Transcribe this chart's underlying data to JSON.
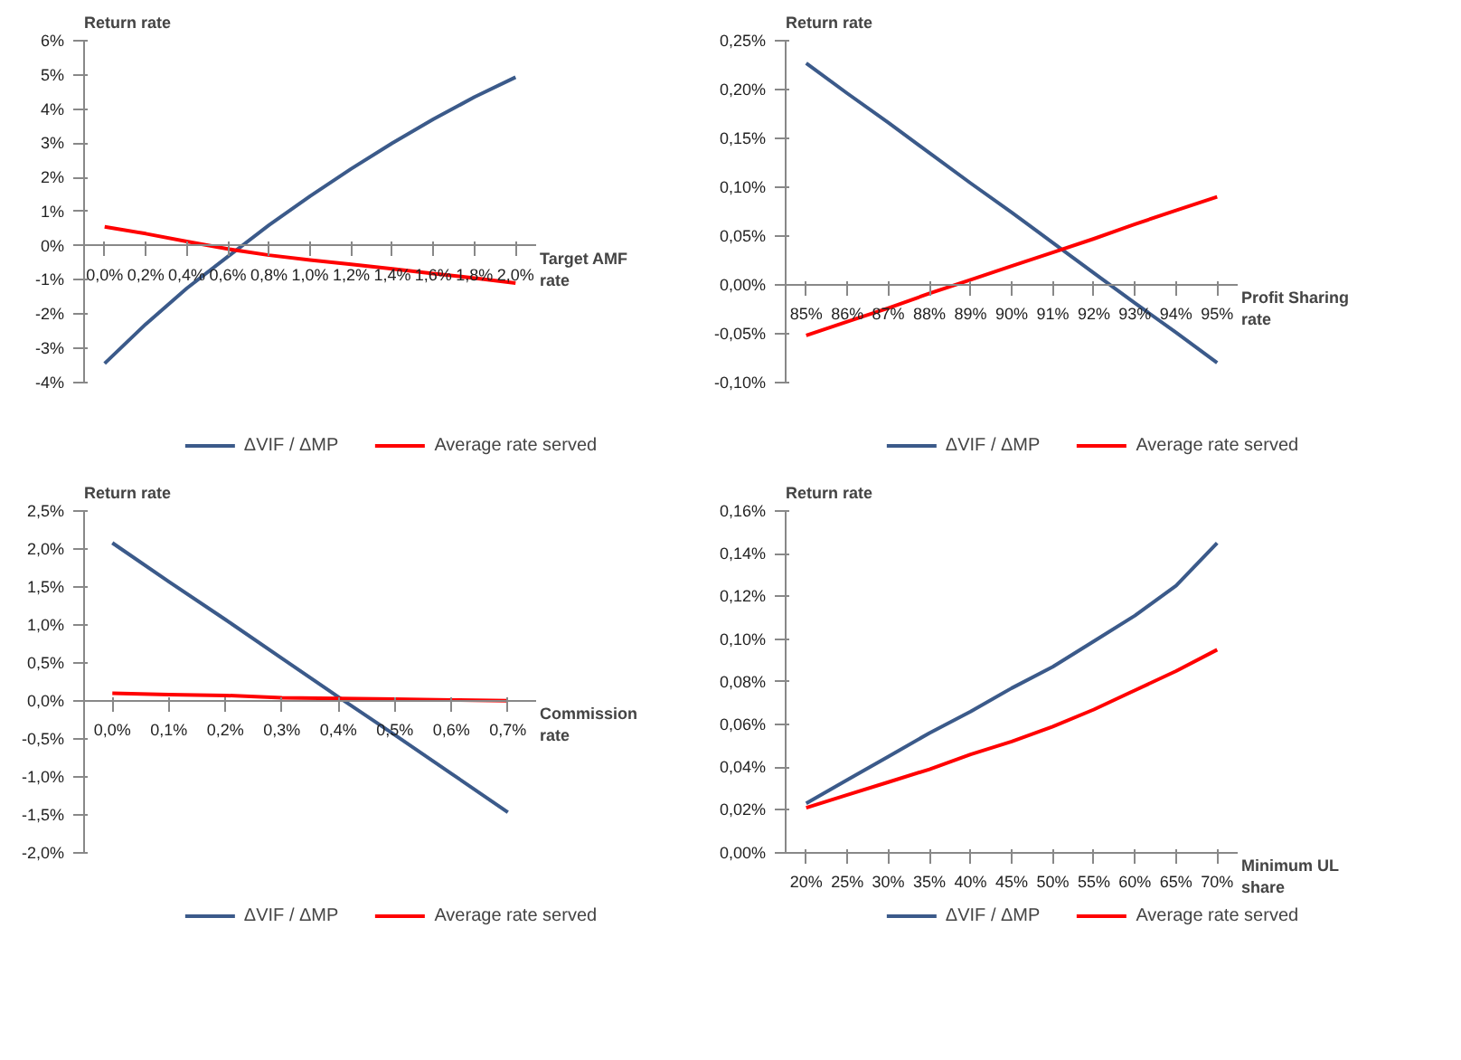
{
  "chart_data": [
    {
      "type": "line",
      "ylabel": "Return rate",
      "xlabel": "Target AMF\nrate",
      "categories": [
        "0,0%",
        "0,2%",
        "0,4%",
        "0,6%",
        "0,8%",
        "1,0%",
        "1,2%",
        "1,4%",
        "1,6%",
        "1,8%",
        "2,0%"
      ],
      "series": [
        {
          "name": "ΔVIF / ΔMP",
          "color": "#3b5a8a",
          "values": [
            -3.45,
            -2.3,
            -1.25,
            -0.32,
            0.6,
            1.45,
            2.25,
            3.0,
            3.7,
            4.35,
            4.93
          ]
        },
        {
          "name": "Average rate served",
          "color": "#ff0000",
          "values": [
            0.55,
            0.35,
            0.12,
            -0.1,
            -0.28,
            -0.42,
            -0.55,
            -0.68,
            -0.82,
            -0.95,
            -1.1
          ]
        }
      ],
      "ylim": [
        -4,
        6
      ],
      "yticks": [
        {
          "value": -4,
          "label": "-4%"
        },
        {
          "value": -3,
          "label": "-3%"
        },
        {
          "value": -2,
          "label": "-2%"
        },
        {
          "value": -1,
          "label": "-1%"
        },
        {
          "value": 0,
          "label": "0%"
        },
        {
          "value": 1,
          "label": "1%"
        },
        {
          "value": 2,
          "label": "2%"
        },
        {
          "value": 3,
          "label": "3%"
        },
        {
          "value": 4,
          "label": "4%"
        },
        {
          "value": 5,
          "label": "5%"
        },
        {
          "value": 6,
          "label": "6%"
        }
      ],
      "grid": false,
      "legend": "bottom",
      "marker": "none",
      "line_style": "solid"
    },
    {
      "type": "line",
      "ylabel": "Return rate",
      "xlabel": "Profit Sharing\nrate",
      "categories": [
        "85%",
        "86%",
        "87%",
        "88%",
        "89%",
        "90%",
        "91%",
        "92%",
        "93%",
        "94%",
        "95%"
      ],
      "series": [
        {
          "name": "ΔVIF / ΔMP",
          "color": "#3b5a8a",
          "values": [
            0.227,
            0.196,
            0.166,
            0.135,
            0.104,
            0.074,
            0.043,
            0.012,
            -0.019,
            -0.049,
            -0.08
          ]
        },
        {
          "name": "Average rate served",
          "color": "#ff0000",
          "values": [
            -0.052,
            -0.038,
            -0.024,
            -0.009,
            0.005,
            0.019,
            0.033,
            0.047,
            0.062,
            0.076,
            0.09
          ]
        }
      ],
      "ylim": [
        -0.1,
        0.25
      ],
      "yticks": [
        {
          "value": -0.1,
          "label": "-0,10%"
        },
        {
          "value": -0.05,
          "label": "-0,05%"
        },
        {
          "value": 0,
          "label": "0,00%"
        },
        {
          "value": 0.05,
          "label": "0,05%"
        },
        {
          "value": 0.1,
          "label": "0,10%"
        },
        {
          "value": 0.15,
          "label": "0,15%"
        },
        {
          "value": 0.2,
          "label": "0,20%"
        },
        {
          "value": 0.25,
          "label": "0,25%"
        }
      ],
      "grid": false,
      "legend": "bottom",
      "marker": "none",
      "line_style": "solid"
    },
    {
      "type": "line",
      "ylabel": "Return rate",
      "xlabel": "Commission\nrate",
      "categories": [
        "0,0%",
        "0,1%",
        "0,2%",
        "0,3%",
        "0,4%",
        "0,5%",
        "0,6%",
        "0,7%"
      ],
      "series": [
        {
          "name": "ΔVIF / ΔMP",
          "color": "#3b5a8a",
          "values": [
            2.08,
            1.57,
            1.07,
            0.56,
            0.05,
            -0.45,
            -0.96,
            -1.47
          ]
        },
        {
          "name": "Average rate served",
          "color": "#ff0000",
          "values": [
            0.1,
            0.08,
            0.07,
            0.04,
            0.03,
            0.02,
            0.01,
            0.0
          ]
        }
      ],
      "ylim": [
        -2,
        2.5
      ],
      "yticks": [
        {
          "value": -2,
          "label": "-2,0%"
        },
        {
          "value": -1.5,
          "label": "-1,5%"
        },
        {
          "value": -1,
          "label": "-1,0%"
        },
        {
          "value": -0.5,
          "label": "-0,5%"
        },
        {
          "value": 0,
          "label": "0,0%"
        },
        {
          "value": 0.5,
          "label": "0,5%"
        },
        {
          "value": 1,
          "label": "1,0%"
        },
        {
          "value": 1.5,
          "label": "1,5%"
        },
        {
          "value": 2,
          "label": "2,0%"
        },
        {
          "value": 2.5,
          "label": "2,5%"
        }
      ],
      "grid": false,
      "legend": "bottom",
      "marker": "none",
      "line_style": "solid"
    },
    {
      "type": "line",
      "ylabel": "Return rate",
      "xlabel": "Minimum UL\nshare",
      "categories": [
        "20%",
        "25%",
        "30%",
        "35%",
        "40%",
        "45%",
        "50%",
        "55%",
        "60%",
        "65%",
        "70%"
      ],
      "series": [
        {
          "name": "ΔVIF / ΔMP",
          "color": "#3b5a8a",
          "values": [
            0.023,
            0.034,
            0.045,
            0.056,
            0.066,
            0.077,
            0.087,
            0.099,
            0.111,
            0.125,
            0.145
          ]
        },
        {
          "name": "Average rate served",
          "color": "#ff0000",
          "values": [
            0.021,
            0.027,
            0.033,
            0.039,
            0.046,
            0.052,
            0.059,
            0.067,
            0.076,
            0.085,
            0.095
          ]
        }
      ],
      "ylim": [
        0,
        0.16
      ],
      "yticks": [
        {
          "value": 0,
          "label": "0,00%"
        },
        {
          "value": 0.02,
          "label": "0,02%"
        },
        {
          "value": 0.04,
          "label": "0,04%"
        },
        {
          "value": 0.06,
          "label": "0,06%"
        },
        {
          "value": 0.08,
          "label": "0,08%"
        },
        {
          "value": 0.1,
          "label": "0,10%"
        },
        {
          "value": 0.12,
          "label": "0,12%"
        },
        {
          "value": 0.14,
          "label": "0,14%"
        },
        {
          "value": 0.16,
          "label": "0,16%"
        }
      ],
      "grid": false,
      "legend": "bottom",
      "marker": "none",
      "line_style": "solid"
    }
  ]
}
